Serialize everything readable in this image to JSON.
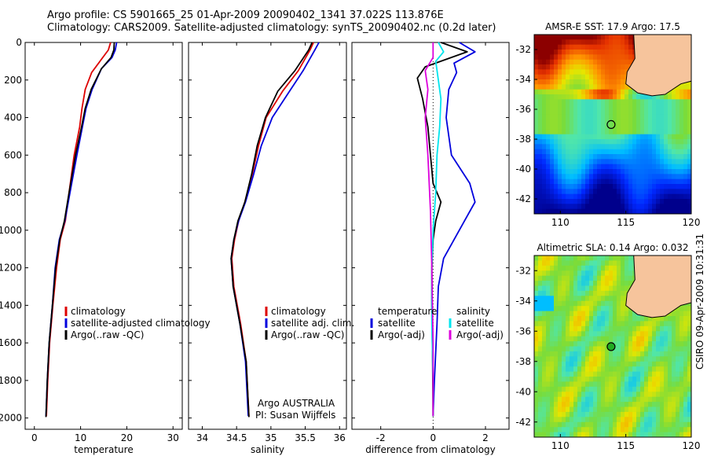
{
  "title": {
    "line1": "Argo profile: CS 5901665_25 01-Apr-2009 20090402_1341 37.022S 113.876E",
    "line2": "Climatology: CARS2009. Satellite-adjusted climatology: synTS_20090402.nc (0.2d later)"
  },
  "side_label": "CSIRO 09-Apr-2009 10:31:31",
  "colors": {
    "climatology": "#dd0000",
    "satellite": "#0000dd",
    "argo": "#000000",
    "cyan": "#00e5ee",
    "magenta": "#dd00dd",
    "land": "#f6c49c"
  },
  "chart_data": [
    {
      "type": "line",
      "id": "temperature",
      "xlabel": "temperature",
      "ylabel": "",
      "xlim": [
        -2,
        32
      ],
      "ylim": [
        2060,
        0
      ],
      "xticks": [
        0,
        10,
        20,
        30
      ],
      "yticks": [
        0,
        200,
        400,
        600,
        800,
        1000,
        1200,
        1400,
        1600,
        1800,
        2000
      ],
      "legend": {
        "placement": "center-left",
        "entries": [
          "climatology",
          "satellite-adjusted climatology",
          "Argo(..raw -QC)"
        ]
      },
      "series": [
        {
          "name": "climatology",
          "color": "climatology",
          "x": [
            16.5,
            16.0,
            14.2,
            12.4,
            11.0,
            10.3,
            9.8,
            8.6,
            7.5,
            6.7,
            5.6,
            4.8,
            4.0,
            3.3,
            2.9,
            2.6
          ],
          "y": [
            0,
            40,
            100,
            160,
            250,
            350,
            450,
            600,
            800,
            950,
            1050,
            1200,
            1400,
            1600,
            1800,
            1990
          ]
        },
        {
          "name": "satellite-adjusted climatology",
          "color": "satellite",
          "x": [
            17.8,
            17.5,
            16.8,
            14.5,
            12.5,
            11.2,
            10.4,
            9.2,
            7.7,
            6.6,
            5.4,
            4.5,
            3.9,
            3.2,
            2.8,
            2.5
          ],
          "y": [
            0,
            40,
            80,
            140,
            250,
            350,
            450,
            600,
            800,
            950,
            1050,
            1200,
            1400,
            1600,
            1800,
            1990
          ]
        },
        {
          "name": "Argo(..raw -QC)",
          "color": "argo",
          "x": [
            17.3,
            17.2,
            16.6,
            14.5,
            12.3,
            11.0,
            10.2,
            8.9,
            7.5,
            6.5,
            5.5,
            4.6,
            3.9,
            3.2,
            2.8,
            2.5
          ],
          "y": [
            0,
            40,
            80,
            140,
            250,
            350,
            450,
            600,
            800,
            950,
            1050,
            1200,
            1400,
            1600,
            1800,
            1995
          ]
        }
      ]
    },
    {
      "type": "line",
      "id": "salinity",
      "xlabel": "salinity",
      "ylabel": "",
      "xlim": [
        33.8,
        36.1
      ],
      "ylim": [
        2060,
        0
      ],
      "xticks": [
        34,
        34.5,
        35,
        35.5,
        36
      ],
      "legend": {
        "placement": "center-right",
        "entries": [
          "climatology",
          "satellite adj. clim.",
          "Argo(..raw -QC)"
        ]
      },
      "annotation": [
        "Argo AUSTRALIA",
        "PI: Susan Wijffels"
      ],
      "series": [
        {
          "name": "climatology",
          "color": "climatology",
          "x": [
            35.62,
            35.57,
            35.4,
            35.17,
            34.93,
            34.82,
            34.73,
            34.62,
            34.53,
            34.47,
            34.43,
            34.46,
            34.56,
            34.64,
            34.68
          ],
          "y": [
            0,
            40,
            150,
            260,
            400,
            550,
            700,
            850,
            950,
            1050,
            1150,
            1300,
            1500,
            1700,
            1990
          ]
        },
        {
          "name": "satellite adj. clim.",
          "color": "satellite",
          "x": [
            35.7,
            35.64,
            35.47,
            35.27,
            35.02,
            34.86,
            34.75,
            34.63,
            34.53,
            34.46,
            34.42,
            34.45,
            34.55,
            34.63,
            34.67
          ],
          "y": [
            0,
            40,
            150,
            260,
            400,
            550,
            700,
            850,
            950,
            1050,
            1150,
            1300,
            1500,
            1700,
            1990
          ]
        },
        {
          "name": "Argo(..raw -QC)",
          "color": "argo",
          "x": [
            35.6,
            35.55,
            35.35,
            35.1,
            34.92,
            34.8,
            34.72,
            34.62,
            34.52,
            34.46,
            34.42,
            34.45,
            34.55,
            34.64,
            34.68
          ],
          "y": [
            0,
            40,
            150,
            260,
            400,
            550,
            700,
            850,
            950,
            1050,
            1150,
            1300,
            1500,
            1700,
            1995
          ]
        }
      ]
    },
    {
      "type": "line",
      "id": "difference",
      "xlabel": "difference from climatology",
      "ylabel": "",
      "xlim": [
        -3.1,
        2.9
      ],
      "ylim": [
        2060,
        0
      ],
      "xticks": [
        -2,
        0,
        2
      ],
      "legend": {
        "placement": "center",
        "groups": [
          {
            "title": "temperature",
            "entries": [
              "satellite",
              "Argo(-adj)"
            ]
          },
          {
            "title": "salinity",
            "entries": [
              "satellite",
              "Argo(-adj)"
            ]
          }
        ]
      },
      "series": [
        {
          "name": "temperature satellite",
          "color": "satellite",
          "x": [
            1.0,
            1.6,
            0.8,
            0.9,
            0.6,
            0.5,
            0.7,
            1.4,
            1.6,
            1.2,
            0.8,
            0.4,
            0.2,
            0.15,
            0.05,
            0.0
          ],
          "y": [
            0,
            50,
            110,
            160,
            250,
            400,
            600,
            750,
            850,
            950,
            1050,
            1150,
            1300,
            1500,
            1800,
            1990
          ]
        },
        {
          "name": "temperature Argo(-adj)",
          "color": "argo",
          "x": [
            0.3,
            1.3,
            -0.3,
            -0.6,
            -0.4,
            -0.2,
            -0.1,
            0.0,
            0.3,
            0.1,
            0.0,
            -0.05,
            -0.05,
            -0.02,
            0.0
          ],
          "y": [
            0,
            50,
            130,
            190,
            300,
            450,
            600,
            750,
            850,
            950,
            1050,
            1200,
            1400,
            1700,
            1990
          ]
        },
        {
          "name": "salinity satellite",
          "color": "cyan",
          "x": [
            0.2,
            0.4,
            0.1,
            0.2,
            0.3,
            0.25,
            0.15,
            0.1,
            0.0,
            -0.05,
            -0.05,
            0.0,
            0.0
          ],
          "y": [
            0,
            50,
            100,
            200,
            300,
            450,
            600,
            800,
            1000,
            1200,
            1500,
            1800,
            1990
          ]
        },
        {
          "name": "salinity Argo(-adj)",
          "color": "magenta",
          "x": [
            0.0,
            0.0,
            -0.3,
            -0.2,
            -0.3,
            -0.2,
            -0.1,
            -0.05,
            0.0,
            0.0
          ],
          "y": [
            0,
            80,
            150,
            250,
            400,
            600,
            900,
            1200,
            1600,
            1990
          ]
        }
      ]
    },
    {
      "type": "heatmap",
      "id": "sst",
      "title": "AMSR-E SST: 17.9 Argo: 17.5",
      "xlim": [
        108,
        120
      ],
      "ylim": [
        -43,
        -31
      ],
      "xticks": [
        110,
        115,
        120
      ],
      "yticks": [
        -32,
        -34,
        -36,
        -38,
        -40,
        -42
      ],
      "argo_position": {
        "lon": 113.876,
        "lat": -37.022
      }
    },
    {
      "type": "heatmap",
      "id": "sla",
      "title": "Altimetric SLA: 0.14 Argo: 0.032",
      "xlim": [
        108,
        120
      ],
      "ylim": [
        -43,
        -31
      ],
      "xticks": [
        110,
        115,
        120
      ],
      "yticks": [
        -32,
        -34,
        -36,
        -38,
        -40,
        -42
      ],
      "argo_position": {
        "lon": 113.876,
        "lat": -37.022
      }
    }
  ]
}
